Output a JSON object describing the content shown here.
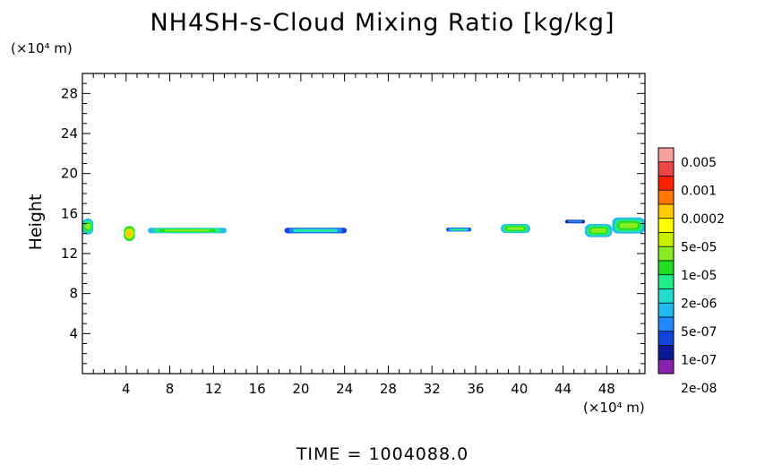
{
  "chart_data": {
    "type": "heatmap",
    "title": "NH4SH-s-Cloud Mixing Ratio [kg/kg]",
    "xlabel": "",
    "ylabel": "Height",
    "x_unit": "(×10⁴ m)",
    "y_unit": "(×10⁴ m)",
    "xlim": [
      0,
      51.5
    ],
    "ylim": [
      0,
      30
    ],
    "x_ticks": [
      4,
      8,
      12,
      16,
      20,
      24,
      28,
      32,
      36,
      40,
      44,
      48
    ],
    "y_ticks": [
      4,
      8,
      12,
      16,
      20,
      24,
      28
    ],
    "colorbar": {
      "labels": [
        "0.005",
        "0.001",
        "0.0002",
        "5e-05",
        "1e-05",
        "2e-06",
        "5e-07",
        "1e-07",
        "2e-08"
      ],
      "colors": [
        "#f6a0a0",
        "#ee4444",
        "#ff2200",
        "#ff7700",
        "#ffcc00",
        "#ffff00",
        "#c8f000",
        "#88ec20",
        "#22dd22",
        "#22ee88",
        "#22ddcc",
        "#22bbee",
        "#2288ff",
        "#1144dd",
        "#0a1a99",
        "#8822aa"
      ]
    },
    "cloud_regions": [
      {
        "x_start": 0.0,
        "x_end": 1.0,
        "y_center": 14.7,
        "thickness": 1.6,
        "level": "1e-05"
      },
      {
        "x_start": 3.8,
        "x_end": 4.8,
        "y_center": 14.0,
        "thickness": 1.5,
        "level": "5e-05"
      },
      {
        "x_start": 6.0,
        "x_end": 13.2,
        "y_center": 14.3,
        "thickness": 0.55,
        "level": "1e-05"
      },
      {
        "x_start": 18.5,
        "x_end": 24.2,
        "y_center": 14.3,
        "thickness": 0.55,
        "level": "5e-07"
      },
      {
        "x_start": 33.3,
        "x_end": 35.6,
        "y_center": 14.4,
        "thickness": 0.4,
        "level": "5e-07"
      },
      {
        "x_start": 38.3,
        "x_end": 41.0,
        "y_center": 14.5,
        "thickness": 0.9,
        "level": "1e-05"
      },
      {
        "x_start": 44.2,
        "x_end": 46.0,
        "y_center": 15.2,
        "thickness": 0.35,
        "level": "1e-07"
      },
      {
        "x_start": 46.0,
        "x_end": 48.5,
        "y_center": 14.3,
        "thickness": 1.3,
        "level": "1e-05"
      },
      {
        "x_start": 48.5,
        "x_end": 51.5,
        "y_center": 14.8,
        "thickness": 1.6,
        "level": "1e-05"
      }
    ]
  },
  "footer": {
    "time_label": "TIME",
    "time_value": "1004088.0"
  }
}
